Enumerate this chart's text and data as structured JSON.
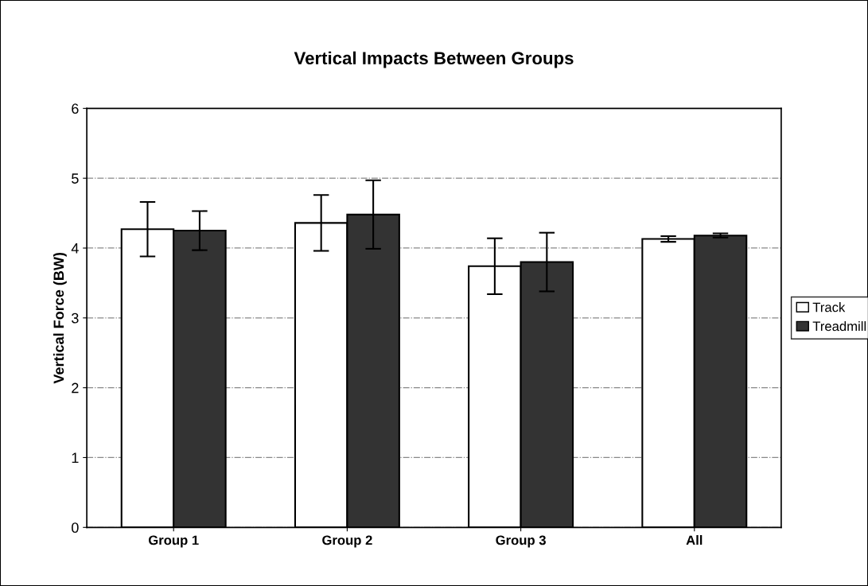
{
  "chart_data": {
    "type": "bar",
    "title": "Vertical Impacts Between Groups",
    "ylabel": "Vertical Force (BW)",
    "categories": [
      "Group 1",
      "Group 2",
      "Group 3",
      "All"
    ],
    "series": [
      {
        "name": "Track",
        "color": "#ffffff",
        "values": [
          4.27,
          4.36,
          3.74,
          4.13
        ],
        "errors": [
          0.39,
          0.4,
          0.4,
          0.04
        ]
      },
      {
        "name": "Treadmill",
        "color": "#333333",
        "values": [
          4.25,
          4.48,
          3.8,
          4.18
        ],
        "errors": [
          0.28,
          0.49,
          0.42,
          0.03
        ]
      }
    ],
    "ylim": [
      0,
      6
    ],
    "yticks": [
      0,
      1,
      2,
      3,
      4,
      5,
      6
    ],
    "grid": "y",
    "legend": "right"
  }
}
